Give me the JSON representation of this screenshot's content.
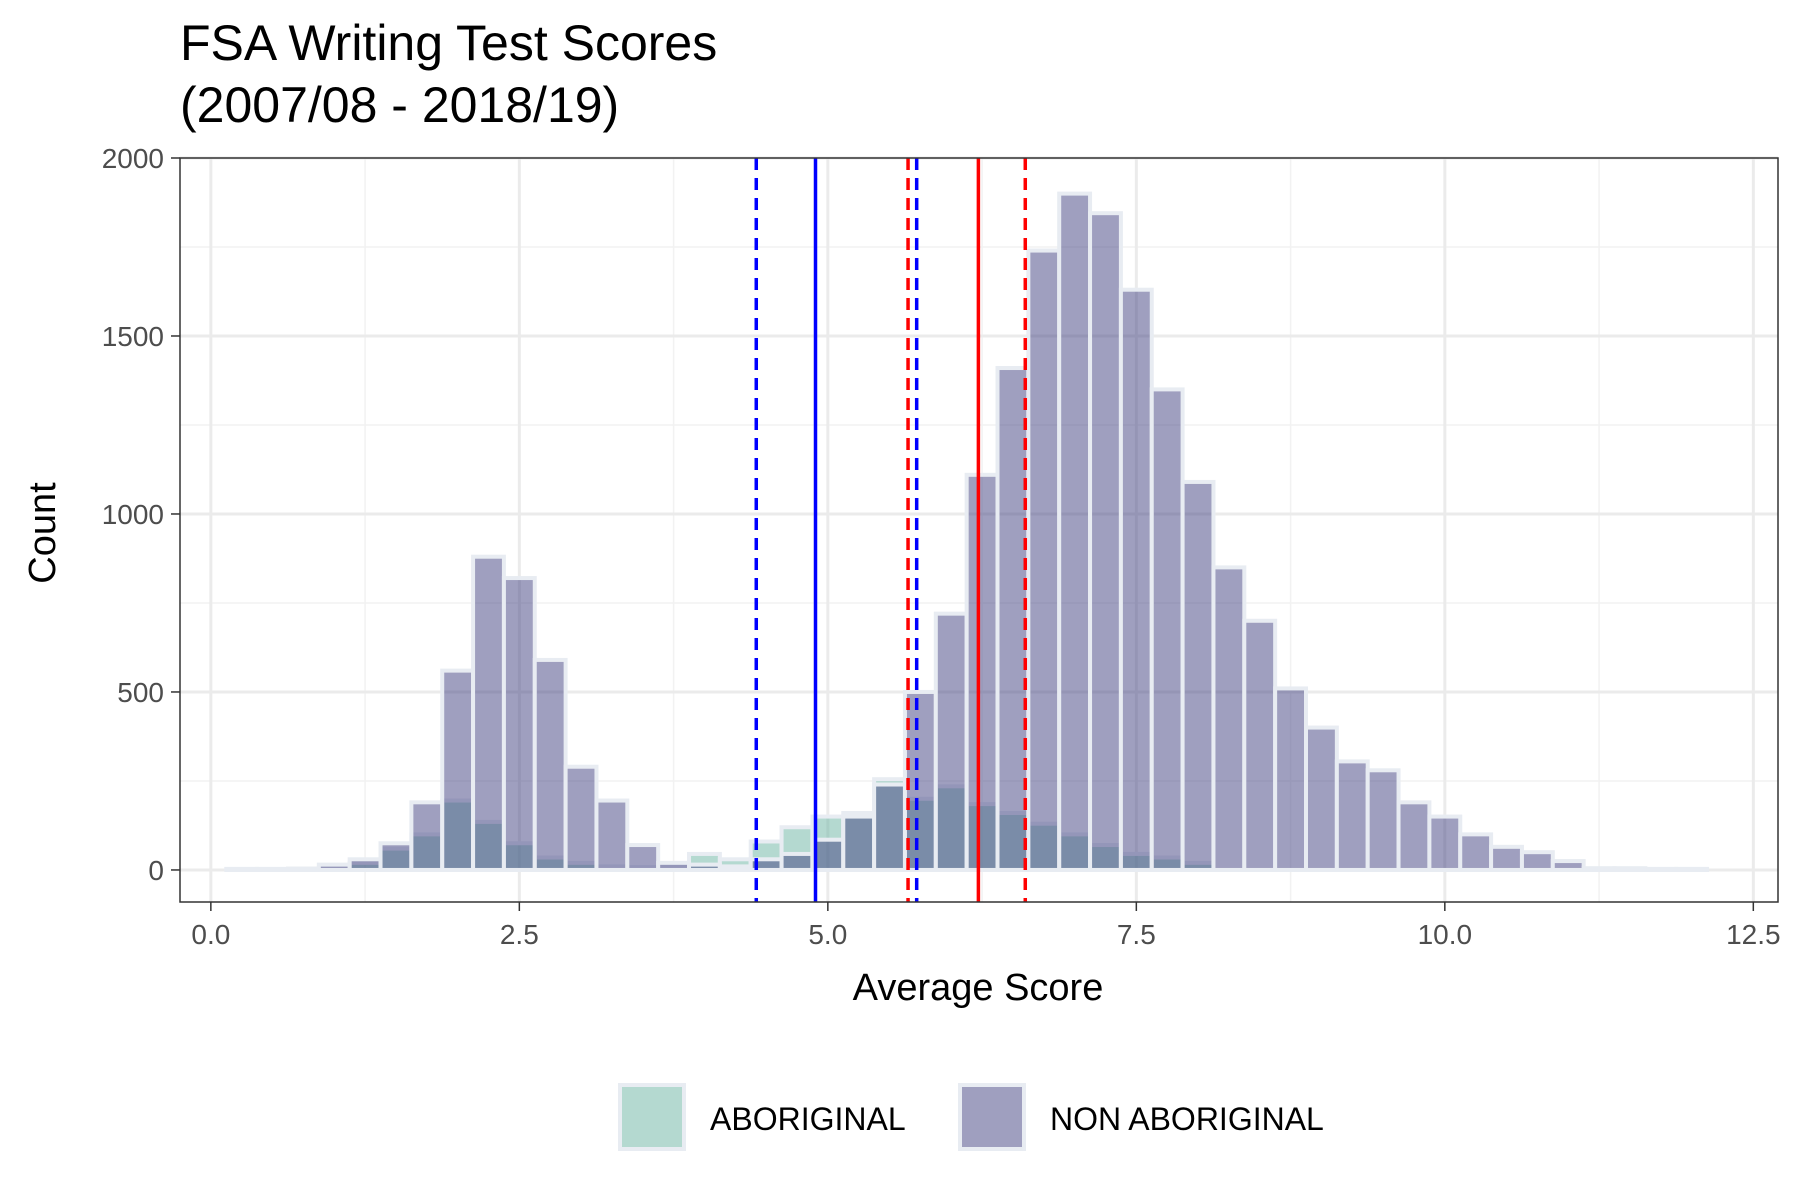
{
  "chart_data": {
    "type": "bar",
    "title_line1": "FSA Writing Test Scores",
    "title_line2": "(2007/08 - 2018/19)",
    "xlabel": "Average Score",
    "ylabel": "Count",
    "xlim": [
      -0.25,
      12.7
    ],
    "ylim": [
      -90,
      2000
    ],
    "x_ticks": [
      0,
      2.5,
      5,
      7.5,
      10,
      12.5
    ],
    "x_tick_labels": [
      "0.0",
      "2.5",
      "5.0",
      "7.5",
      "10.0",
      "12.5"
    ],
    "y_ticks": [
      0,
      500,
      1000,
      1500,
      2000
    ],
    "y_tick_labels": [
      "0",
      "500",
      "1000",
      "1500",
      "2000"
    ],
    "grid": true,
    "legend_position": "bottom",
    "bin_width": 0.25,
    "series": [
      {
        "name": "ABORIGINAL",
        "color": "#69b3a2",
        "x": [
          1.0,
          1.25,
          1.5,
          1.75,
          2.0,
          2.25,
          2.5,
          2.75,
          3.0,
          3.25,
          3.5,
          3.75,
          4.0,
          4.25,
          4.5,
          4.75,
          5.0,
          5.25,
          5.5,
          5.75,
          6.0,
          6.25,
          6.5,
          6.75,
          7.0,
          7.25,
          7.5,
          7.75,
          8.0
        ],
        "values": [
          5,
          20,
          60,
          100,
          195,
          135,
          75,
          35,
          20,
          10,
          8,
          10,
          45,
          30,
          80,
          120,
          150,
          160,
          255,
          200,
          235,
          185,
          160,
          130,
          100,
          70,
          45,
          35,
          20
        ]
      },
      {
        "name": "NON ABORIGINAL",
        "color": "#404080",
        "x": [
          0.25,
          0.5,
          0.75,
          1.0,
          1.25,
          1.5,
          1.75,
          2.0,
          2.25,
          2.5,
          2.75,
          3.0,
          3.25,
          3.5,
          3.75,
          4.0,
          4.25,
          4.5,
          4.75,
          5.0,
          5.25,
          5.5,
          5.75,
          6.0,
          6.25,
          6.5,
          6.75,
          7.0,
          7.25,
          7.5,
          7.75,
          8.0,
          8.25,
          8.5,
          8.75,
          9.0,
          9.25,
          9.5,
          9.75,
          10.0,
          10.25,
          10.5,
          10.75,
          11.0,
          11.25,
          11.5,
          11.75,
          12.0
        ],
        "values": [
          3,
          3,
          4,
          15,
          30,
          75,
          190,
          560,
          880,
          820,
          590,
          290,
          195,
          70,
          20,
          15,
          10,
          30,
          45,
          85,
          150,
          240,
          500,
          720,
          1110,
          1410,
          1740,
          1900,
          1845,
          1630,
          1350,
          1090,
          850,
          700,
          510,
          400,
          305,
          280,
          190,
          150,
          100,
          65,
          50,
          25,
          5,
          5,
          3,
          3
        ]
      }
    ],
    "reference_lines": [
      {
        "x": 4.9,
        "color": "#0000ff",
        "style": "solid"
      },
      {
        "x": 4.42,
        "color": "#0000ff",
        "style": "dashed"
      },
      {
        "x": 5.72,
        "color": "#0000ff",
        "style": "dashed"
      },
      {
        "x": 6.22,
        "color": "#ff0000",
        "style": "solid"
      },
      {
        "x": 5.65,
        "color": "#ff0000",
        "style": "dashed"
      },
      {
        "x": 6.6,
        "color": "#ff0000",
        "style": "dashed"
      }
    ]
  }
}
